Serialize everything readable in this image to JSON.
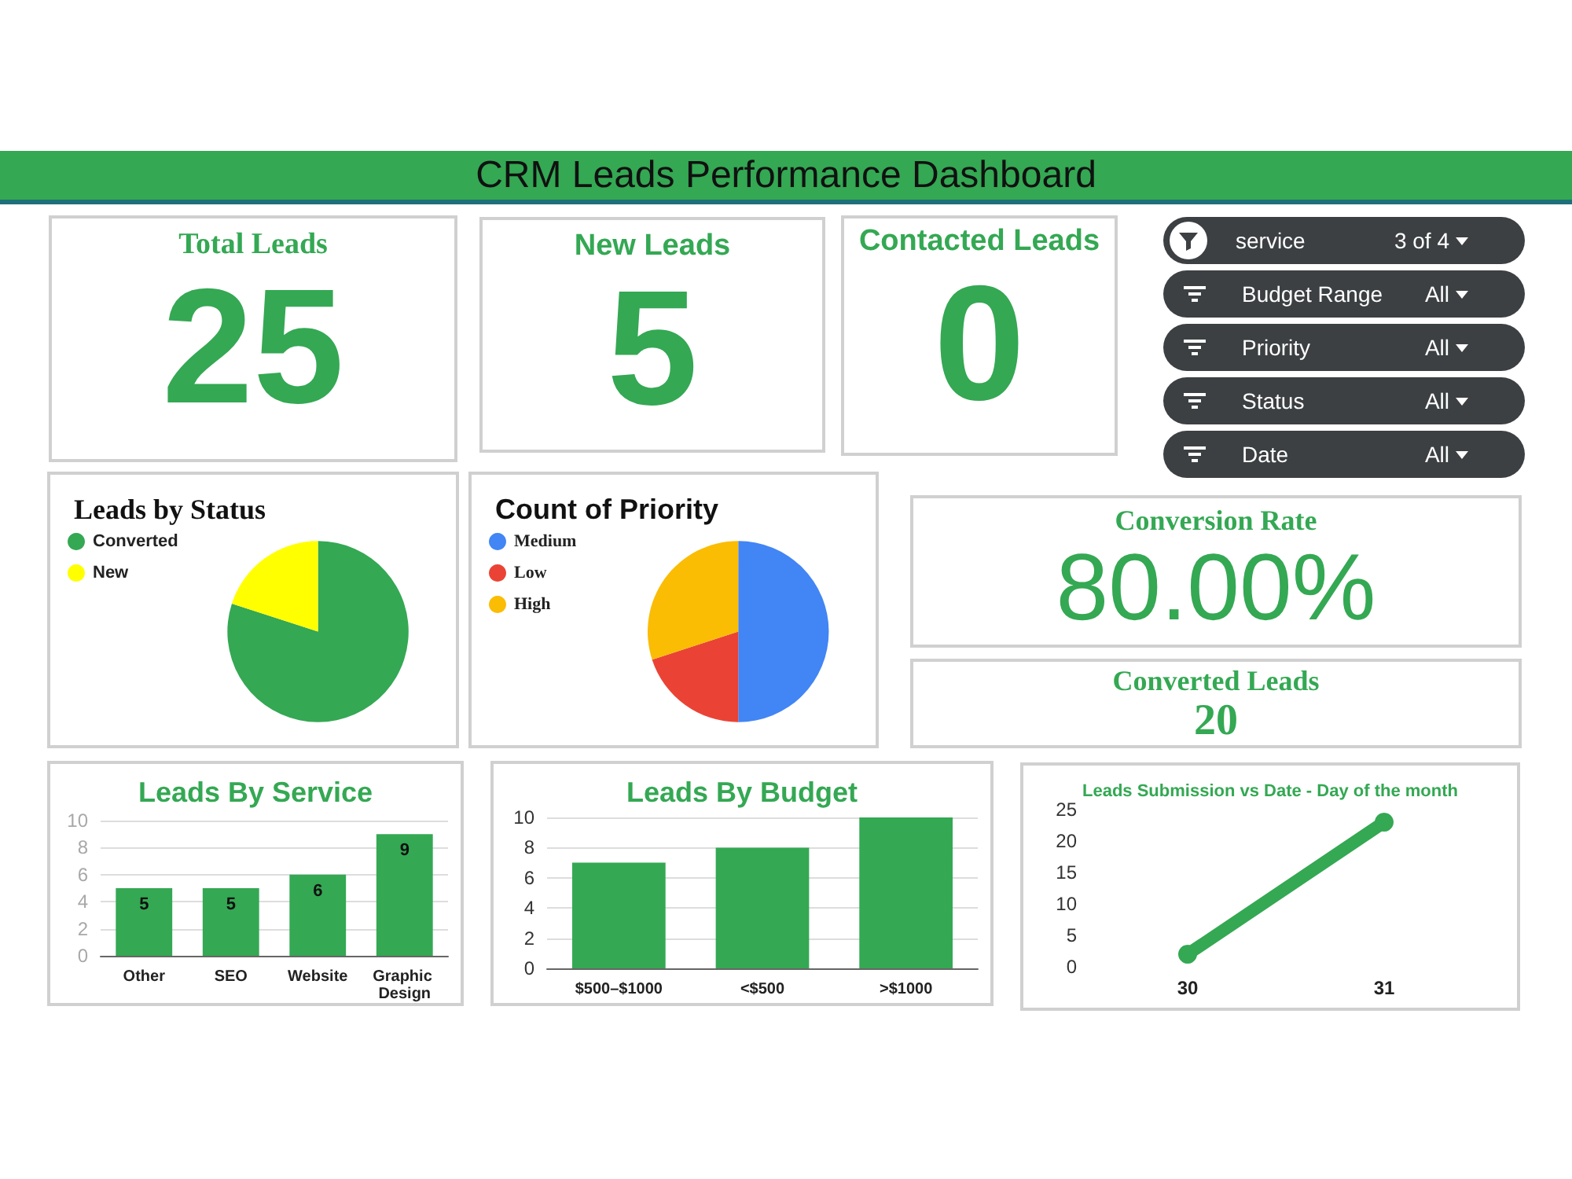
{
  "chart_data": [
    {
      "type": "other",
      "title": "CRM Leads Performance Dashboard"
    },
    {
      "type": "other",
      "title": "Total Leads",
      "values": [
        25
      ],
      "data_labels": true
    },
    {
      "type": "other",
      "title": "New Leads",
      "values": [
        5
      ],
      "data_labels": true
    },
    {
      "type": "other",
      "title": "Contacted Leads",
      "values": [
        0
      ],
      "data_labels": true
    },
    {
      "type": "other",
      "annotations": [
        "service",
        "3 of 4",
        "Budget Range",
        "All",
        "Priority",
        "All",
        "Status",
        "All",
        "Date",
        "All"
      ]
    },
    {
      "type": "pie",
      "title": "Leads by Status",
      "categories": [
        "Converted",
        "New"
      ],
      "values": [
        80,
        20
      ],
      "colors": [
        "#34a853",
        "#ffff00"
      ],
      "legend": "top left"
    },
    {
      "type": "pie",
      "title": "Count of Priority",
      "categories": [
        "Medium",
        "Low",
        "High"
      ],
      "values": [
        50,
        20,
        30
      ],
      "colors": [
        "#4285f4",
        "#ea4335",
        "#fbbc04"
      ],
      "legend": "top left"
    },
    {
      "type": "other",
      "title": "Conversion Rate",
      "values": [
        80
      ],
      "value_labels": [
        "80.00%"
      ]
    },
    {
      "type": "other",
      "title": "Converted Leads",
      "values": [
        20
      ],
      "data_labels": true
    },
    {
      "type": "bar",
      "title": "Leads By Service",
      "categories": [
        "Other",
        "SEO",
        "Website",
        "Graphic Design"
      ],
      "values": [
        5,
        5,
        6,
        9
      ],
      "color": "#34a853",
      "ylim": [
        0,
        10
      ],
      "yticks": [
        0,
        2,
        4,
        6,
        8,
        10
      ],
      "grid": "y",
      "data_labels": true
    },
    {
      "type": "bar",
      "title": "Leads By Budget",
      "categories": [
        "$500–$1000",
        "<$500",
        ">$1000"
      ],
      "values": [
        7,
        8,
        10
      ],
      "color": "#34a853",
      "ylim": [
        0,
        10
      ],
      "yticks": [
        0,
        2,
        4,
        6,
        8,
        10
      ],
      "grid": "y"
    },
    {
      "type": "line",
      "title": "Leads Submission vs Date - Day of the month",
      "categories": [
        "30",
        "31"
      ],
      "values": [
        2,
        23
      ],
      "color": "#34a853",
      "ylim": [
        0,
        25
      ],
      "yticks": [
        0,
        5,
        10,
        15,
        20,
        25
      ],
      "marker": "circle",
      "line_style": "solid"
    }
  ]
}
